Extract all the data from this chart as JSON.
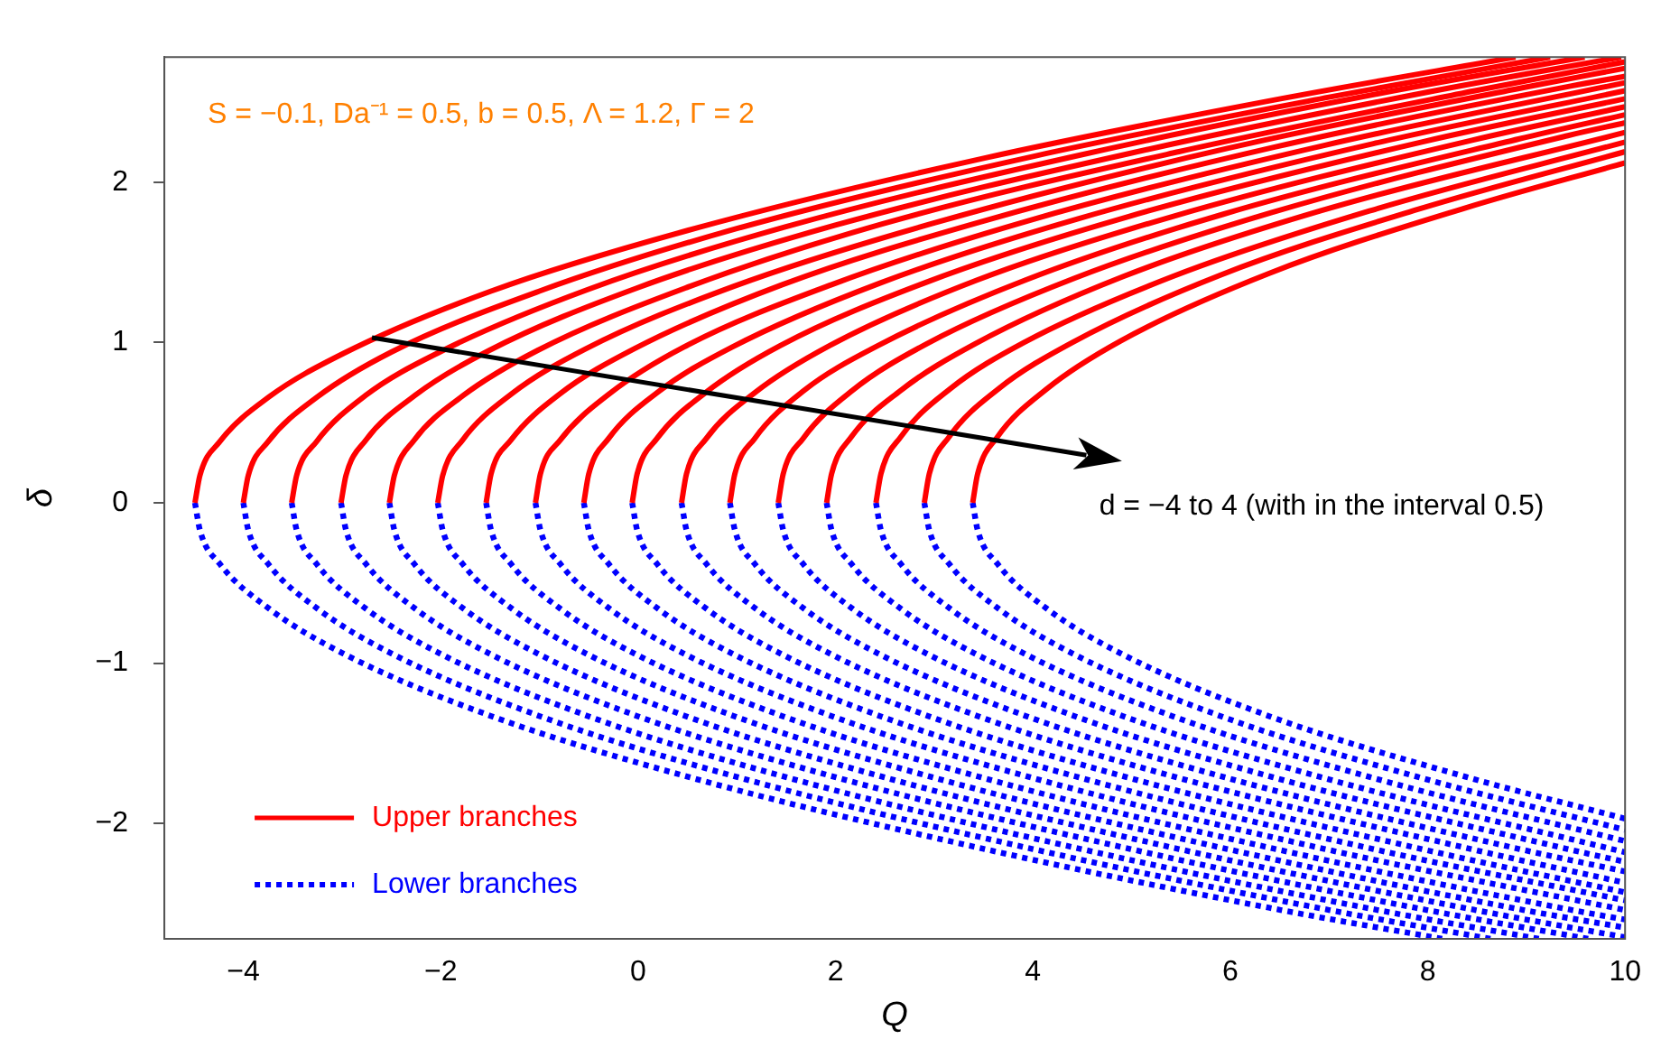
{
  "chart_data": {
    "type": "line",
    "xlabel": "Q",
    "ylabel": "δ",
    "xlim": [
      -4.8,
      10
    ],
    "ylim": [
      -2.72,
      2.78
    ],
    "xticks": [
      {
        "value": -4,
        "label": "−4"
      },
      {
        "value": -2,
        "label": "−2"
      },
      0,
      2,
      4,
      6,
      8,
      10
    ],
    "yticks": [
      {
        "value": -2,
        "label": "−2"
      },
      {
        "value": -1,
        "label": "−1"
      },
      0,
      1,
      2
    ],
    "grid": false,
    "legend": "bottom left",
    "marker": "none",
    "annotations": [
      "S = −0.1, Da⁻¹ = 0.5, b = 0.5, Λ = 1.2, Γ = 2",
      "d = −4 to 4 (with in the interval 0.5)"
    ],
    "series": [
      {
        "name": "Upper branches",
        "color": "#ff0000",
        "line_style": "solid",
        "x": [
          -4.49,
          -4.44,
          -4.24,
          -3.74,
          -2.99,
          -1.49,
          0.51,
          3.51,
          6.51,
          8.89
        ],
        "values": [
          0,
          0.17,
          0.38,
          0.66,
          0.93,
          1.32,
          1.7,
          2.15,
          2.52,
          2.78
        ]
      },
      {
        "color": "#ff0000",
        "line_style": "solid",
        "x": [
          -4.0,
          -3.95,
          -3.75,
          -3.25,
          -2.5,
          -1.0,
          1.0,
          4.0,
          7.0,
          9.24
        ],
        "values": [
          0,
          0.17,
          0.38,
          0.66,
          0.94,
          1.32,
          1.71,
          2.16,
          2.53,
          2.78
        ]
      },
      {
        "color": "#ff0000",
        "line_style": "solid",
        "x": [
          -3.51,
          -3.46,
          -3.26,
          -2.76,
          -2.01,
          -0.51,
          1.49,
          4.49,
          7.49,
          9.59
        ],
        "values": [
          0,
          0.17,
          0.38,
          0.67,
          0.94,
          1.33,
          1.72,
          2.17,
          2.55,
          2.78
        ]
      },
      {
        "color": "#ff0000",
        "line_style": "solid",
        "x": [
          -3.01,
          -2.96,
          -2.76,
          -2.26,
          -1.51,
          -0.01,
          1.99,
          4.99,
          7.99,
          9.96
        ],
        "values": [
          0,
          0.17,
          0.39,
          0.67,
          0.95,
          1.34,
          1.73,
          2.18,
          2.56,
          2.78
        ]
      },
      {
        "color": "#ff0000",
        "line_style": "solid",
        "x": [
          -2.52,
          -2.47,
          -2.27,
          -1.77,
          -1.02,
          0.48,
          2.48,
          5.48,
          8.48,
          10
        ],
        "values": [
          0,
          0.17,
          0.39,
          0.67,
          0.95,
          1.34,
          1.74,
          2.19,
          2.57,
          2.75
        ]
      },
      {
        "color": "#ff0000",
        "line_style": "solid",
        "x": [
          -2.03,
          -1.98,
          -1.78,
          -1.28,
          -0.53,
          0.97,
          2.97,
          5.97,
          8.97,
          10
        ],
        "values": [
          0,
          0.17,
          0.39,
          0.68,
          0.96,
          1.35,
          1.74,
          2.21,
          2.59,
          2.71
        ]
      },
      {
        "color": "#ff0000",
        "line_style": "solid",
        "x": [
          -1.54,
          -1.49,
          -1.29,
          -0.79,
          -0.04,
          1.46,
          3.46,
          6.46,
          9.46,
          10
        ],
        "values": [
          0,
          0.18,
          0.39,
          0.68,
          0.96,
          1.36,
          1.75,
          2.22,
          2.6,
          2.66
        ]
      },
      {
        "color": "#ff0000",
        "line_style": "solid",
        "x": [
          -1.04,
          -0.99,
          -0.79,
          -0.29,
          0.46,
          1.96,
          3.96,
          6.96,
          10
        ],
        "values": [
          0,
          0.18,
          0.39,
          0.68,
          0.97,
          1.36,
          1.76,
          2.23,
          2.62
        ]
      },
      {
        "color": "#ff0000",
        "line_style": "solid",
        "x": [
          -0.55,
          -0.5,
          -0.3,
          0.2,
          0.95,
          2.45,
          4.45,
          7.45,
          10
        ],
        "values": [
          0,
          0.18,
          0.4,
          0.69,
          0.97,
          1.37,
          1.77,
          2.24,
          2.57
        ]
      },
      {
        "color": "#ff0000",
        "line_style": "solid",
        "x": [
          -0.06,
          -0.01,
          0.19,
          0.69,
          1.44,
          2.94,
          4.94,
          7.94,
          10
        ],
        "values": [
          0,
          0.18,
          0.4,
          0.69,
          0.98,
          1.38,
          1.78,
          2.25,
          2.52
        ]
      },
      {
        "color": "#ff0000",
        "line_style": "solid",
        "x": [
          0.44,
          0.49,
          0.69,
          1.19,
          1.94,
          3.44,
          5.44,
          8.44,
          10
        ],
        "values": [
          0,
          0.18,
          0.4,
          0.69,
          0.98,
          1.39,
          1.79,
          2.26,
          2.47
        ]
      },
      {
        "color": "#ff0000",
        "line_style": "solid",
        "x": [
          0.93,
          0.98,
          1.18,
          1.68,
          2.43,
          3.93,
          5.93,
          8.93,
          10
        ],
        "values": [
          0,
          0.18,
          0.4,
          0.7,
          0.98,
          1.39,
          1.8,
          2.27,
          2.42
        ]
      },
      {
        "color": "#ff0000",
        "line_style": "solid",
        "x": [
          1.42,
          1.47,
          1.67,
          2.17,
          2.92,
          4.42,
          6.42,
          9.42,
          10
        ],
        "values": [
          0,
          0.18,
          0.4,
          0.7,
          0.99,
          1.4,
          1.81,
          2.29,
          2.37
        ]
      },
      {
        "color": "#ff0000",
        "line_style": "solid",
        "x": [
          1.91,
          1.96,
          2.16,
          2.66,
          3.41,
          4.91,
          6.91,
          10
        ],
        "values": [
          0,
          0.18,
          0.41,
          0.7,
          0.99,
          1.41,
          1.82,
          2.31
        ]
      },
      {
        "color": "#ff0000",
        "line_style": "solid",
        "x": [
          2.41,
          2.46,
          2.66,
          3.16,
          3.91,
          5.41,
          7.41,
          10
        ],
        "values": [
          0,
          0.18,
          0.41,
          0.71,
          1.0,
          1.41,
          1.82,
          2.25
        ]
      },
      {
        "color": "#ff0000",
        "line_style": "solid",
        "x": [
          2.9,
          2.95,
          3.15,
          3.65,
          4.4,
          5.9,
          7.9,
          10
        ],
        "values": [
          0,
          0.18,
          0.41,
          0.71,
          1.0,
          1.42,
          1.83,
          2.19
        ]
      },
      {
        "color": "#ff0000",
        "line_style": "solid",
        "x": [
          3.39,
          3.44,
          3.64,
          4.14,
          4.89,
          6.39,
          8.39,
          10
        ],
        "values": [
          0,
          0.18,
          0.41,
          0.71,
          1.01,
          1.43,
          1.84,
          2.12
        ]
      },
      {
        "name": "Lower branches",
        "color": "#0000ff",
        "line_style": "dotted",
        "x": [
          -4.49,
          -4.44,
          -4.24,
          -3.74,
          -2.99,
          -1.49,
          0.51,
          3.51,
          6.51,
          8.15
        ],
        "values": [
          0,
          -0.17,
          -0.38,
          -0.66,
          -0.94,
          -1.33,
          -1.71,
          -2.16,
          -2.54,
          -2.72
        ]
      },
      {
        "color": "#0000ff",
        "line_style": "dotted",
        "x": [
          -4.0,
          -3.95,
          -3.75,
          -3.25,
          -2.5,
          -1.0,
          1.0,
          4.0,
          7.0,
          8.64
        ],
        "values": [
          0,
          -0.17,
          -0.38,
          -0.66,
          -0.94,
          -1.33,
          -1.71,
          -2.16,
          -2.54,
          -2.72
        ]
      },
      {
        "color": "#0000ff",
        "line_style": "dotted",
        "x": [
          -3.51,
          -3.46,
          -3.26,
          -2.76,
          -2.01,
          -0.51,
          1.49,
          4.49,
          7.49,
          9.13
        ],
        "values": [
          0,
          -0.17,
          -0.38,
          -0.66,
          -0.94,
          -1.33,
          -1.71,
          -2.16,
          -2.54,
          -2.72
        ]
      },
      {
        "color": "#0000ff",
        "line_style": "dotted",
        "x": [
          -3.01,
          -2.96,
          -2.76,
          -2.26,
          -1.51,
          -0.01,
          1.99,
          4.99,
          7.99,
          9.63
        ],
        "values": [
          0,
          -0.17,
          -0.38,
          -0.66,
          -0.94,
          -1.33,
          -1.71,
          -2.16,
          -2.54,
          -2.72
        ]
      },
      {
        "color": "#0000ff",
        "line_style": "dotted",
        "x": [
          -2.52,
          -2.47,
          -2.27,
          -1.77,
          -1.02,
          0.48,
          2.48,
          5.48,
          8.48,
          10
        ],
        "values": [
          0,
          -0.17,
          -0.38,
          -0.66,
          -0.94,
          -1.33,
          -1.71,
          -2.16,
          -2.54,
          -2.71
        ]
      },
      {
        "color": "#0000ff",
        "line_style": "dotted",
        "x": [
          -2.03,
          -1.98,
          -1.78,
          -1.28,
          -0.53,
          0.97,
          2.97,
          5.97,
          8.97,
          10
        ],
        "values": [
          0,
          -0.17,
          -0.38,
          -0.66,
          -0.94,
          -1.33,
          -1.71,
          -2.16,
          -2.54,
          -2.65
        ]
      },
      {
        "color": "#0000ff",
        "line_style": "dotted",
        "x": [
          -1.54,
          -1.49,
          -1.29,
          -0.79,
          -0.04,
          1.46,
          3.46,
          6.46,
          9.46,
          10
        ],
        "values": [
          0,
          -0.17,
          -0.38,
          -0.66,
          -0.94,
          -1.33,
          -1.71,
          -2.16,
          -2.54,
          -2.6
        ]
      },
      {
        "color": "#0000ff",
        "line_style": "dotted",
        "x": [
          -1.04,
          -0.99,
          -0.79,
          -0.29,
          0.46,
          1.96,
          3.96,
          6.96,
          10
        ],
        "values": [
          0,
          -0.17,
          -0.38,
          -0.66,
          -0.94,
          -1.33,
          -1.71,
          -2.16,
          -2.54
        ]
      },
      {
        "color": "#0000ff",
        "line_style": "dotted",
        "x": [
          -0.55,
          -0.5,
          -0.3,
          0.2,
          0.95,
          2.45,
          4.45,
          7.45,
          10
        ],
        "values": [
          0,
          -0.17,
          -0.38,
          -0.66,
          -0.94,
          -1.33,
          -1.71,
          -2.16,
          -2.48
        ]
      },
      {
        "color": "#0000ff",
        "line_style": "dotted",
        "x": [
          -0.06,
          -0.01,
          0.19,
          0.69,
          1.44,
          2.94,
          4.94,
          7.94,
          10
        ],
        "values": [
          0,
          -0.17,
          -0.38,
          -0.66,
          -0.94,
          -1.33,
          -1.71,
          -2.16,
          -2.43
        ]
      },
      {
        "color": "#0000ff",
        "line_style": "dotted",
        "x": [
          0.44,
          0.49,
          0.69,
          1.19,
          1.94,
          3.44,
          5.44,
          8.44,
          10
        ],
        "values": [
          0,
          -0.17,
          -0.38,
          -0.66,
          -0.94,
          -1.33,
          -1.71,
          -2.16,
          -2.37
        ]
      },
      {
        "color": "#0000ff",
        "line_style": "dotted",
        "x": [
          0.93,
          0.98,
          1.18,
          1.68,
          2.43,
          3.93,
          5.93,
          8.93,
          10
        ],
        "values": [
          0,
          -0.17,
          -0.38,
          -0.66,
          -0.94,
          -1.33,
          -1.71,
          -2.16,
          -2.3
        ]
      },
      {
        "color": "#0000ff",
        "line_style": "dotted",
        "x": [
          1.42,
          1.47,
          1.67,
          2.17,
          2.92,
          4.42,
          6.42,
          9.42,
          10
        ],
        "values": [
          0,
          -0.17,
          -0.38,
          -0.66,
          -0.94,
          -1.33,
          -1.71,
          -2.16,
          -2.24
        ]
      },
      {
        "color": "#0000ff",
        "line_style": "dotted",
        "x": [
          1.91,
          1.96,
          2.16,
          2.66,
          3.41,
          4.91,
          6.91,
          10
        ],
        "values": [
          0,
          -0.17,
          -0.38,
          -0.66,
          -0.94,
          -1.33,
          -1.71,
          -2.18
        ]
      },
      {
        "color": "#0000ff",
        "line_style": "dotted",
        "x": [
          2.41,
          2.46,
          2.66,
          3.16,
          3.91,
          5.41,
          7.41,
          10
        ],
        "values": [
          0,
          -0.17,
          -0.38,
          -0.66,
          -0.94,
          -1.33,
          -1.71,
          -2.11
        ]
      },
      {
        "color": "#0000ff",
        "line_style": "dotted",
        "x": [
          2.9,
          2.95,
          3.15,
          3.65,
          4.4,
          5.9,
          7.9,
          10
        ],
        "values": [
          0,
          -0.17,
          -0.38,
          -0.66,
          -0.94,
          -1.33,
          -1.71,
          -2.04
        ]
      },
      {
        "color": "#0000ff",
        "line_style": "dotted",
        "x": [
          3.39,
          3.44,
          3.64,
          4.14,
          4.89,
          6.39,
          8.39,
          10
        ],
        "values": [
          0,
          -0.17,
          -0.38,
          -0.66,
          -0.94,
          -1.33,
          -1.71,
          -1.97
        ]
      }
    ]
  }
}
